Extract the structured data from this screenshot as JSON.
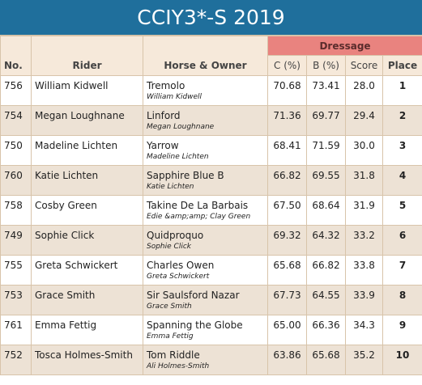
{
  "header": {
    "title": "CCIY3*-S 2019"
  },
  "table": {
    "group_header": "Dressage",
    "columns": [
      "No.",
      "Rider",
      "Horse & Owner",
      "C (%)",
      "B (%)",
      "Score",
      "Place"
    ],
    "rows": [
      [
        "756",
        "William Kidwell",
        "Tremolo",
        "William Kidwell",
        "70.68",
        "73.41",
        "28.0",
        "1"
      ],
      [
        "754",
        "Megan Loughnane",
        "Linford",
        "Megan Loughnane",
        "71.36",
        "69.77",
        "29.4",
        "2"
      ],
      [
        "750",
        "Madeline Lichten",
        "Yarrow",
        "Madeline Lichten",
        "68.41",
        "71.59",
        "30.0",
        "3"
      ],
      [
        "760",
        "Katie Lichten",
        "Sapphire Blue B",
        "Katie Lichten",
        "66.82",
        "69.55",
        "31.8",
        "4"
      ],
      [
        "758",
        "Cosby Green",
        "Takine De La Barbais",
        "Edie &amp;amp; Clay Green",
        "67.50",
        "68.64",
        "31.9",
        "5"
      ],
      [
        "749",
        "Sophie Click",
        "Quidproquo",
        "Sophie Click",
        "69.32",
        "64.32",
        "33.2",
        "6"
      ],
      [
        "755",
        "Greta Schwickert",
        "Charles Owen",
        "Greta Schwickert",
        "65.68",
        "66.82",
        "33.8",
        "7"
      ],
      [
        "753",
        "Grace Smith",
        "Sir Saulsford Nazar",
        "Grace Smith",
        "67.73",
        "64.55",
        "33.9",
        "8"
      ],
      [
        "761",
        "Emma Fettig",
        "Spanning the Globe",
        "Emma Fettig",
        "65.00",
        "66.36",
        "34.3",
        "9"
      ],
      [
        "752",
        "Tosca Holmes-Smith",
        "Tom Riddle",
        "Ali Holmes-Smith",
        "63.86",
        "65.68",
        "35.2",
        "10"
      ]
    ]
  }
}
